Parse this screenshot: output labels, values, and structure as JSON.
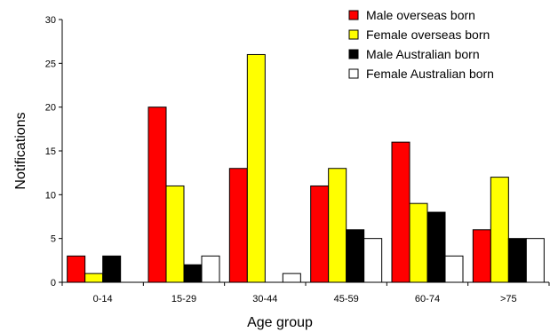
{
  "chart_data": {
    "type": "bar",
    "xlabel": "Age group",
    "ylabel": "Notifications",
    "ylim": [
      0,
      30
    ],
    "yticks": [
      "0",
      "5",
      "10",
      "15",
      "20",
      "25",
      "30"
    ],
    "categories": [
      "0-14",
      "15-29",
      "30-44",
      "45-59",
      "60-74",
      ">75"
    ],
    "legend_position": "top-right",
    "grid": false,
    "series": [
      {
        "name": "Male overseas born",
        "color": "#ff0000",
        "values": [
          3,
          20,
          13,
          11,
          16,
          6
        ]
      },
      {
        "name": "Female overseas born",
        "color": "#ffff00",
        "values": [
          1,
          11,
          26,
          13,
          9,
          12
        ]
      },
      {
        "name": "Male Australian born",
        "color": "#000000",
        "values": [
          3,
          2,
          0,
          6,
          8,
          5
        ]
      },
      {
        "name": "Female Australian born",
        "color": "#ffffff",
        "values": [
          0,
          3,
          1,
          5,
          3,
          5
        ]
      }
    ]
  }
}
